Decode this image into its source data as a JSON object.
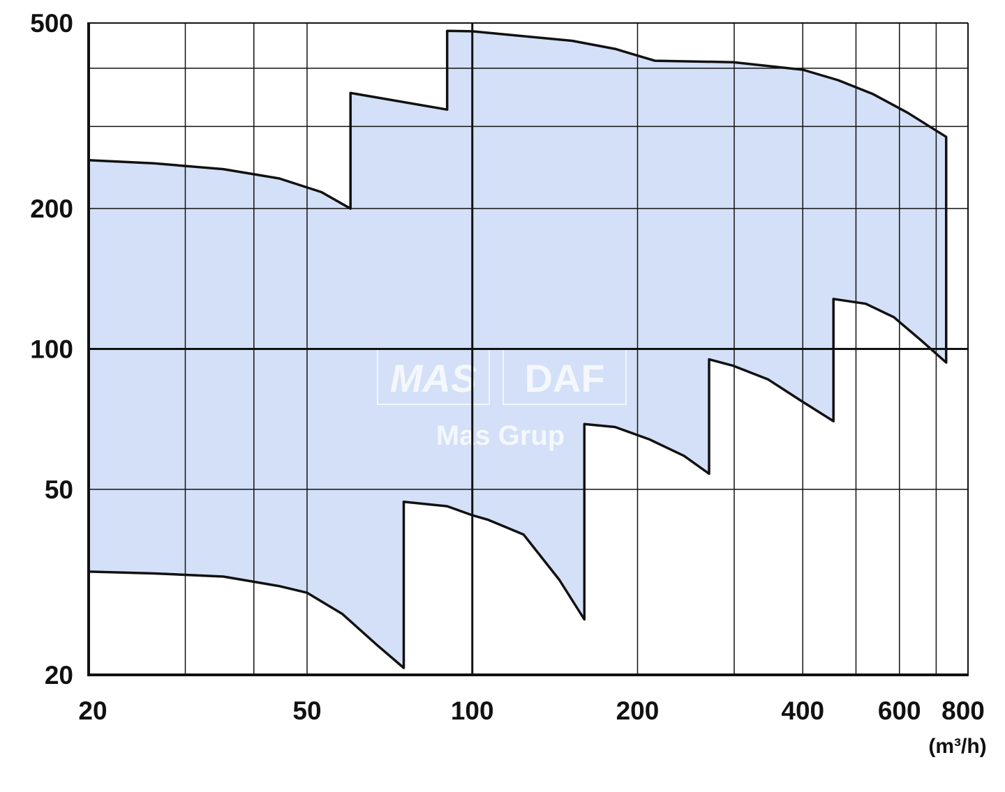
{
  "chart_data": {
    "type": "range-area",
    "x_unit": "(m³/h)",
    "watermark": [
      "MAS",
      "DAF",
      "Mas Grup"
    ],
    "xlim": [
      20,
      800
    ],
    "ylim": [
      20,
      500
    ],
    "log_x": true,
    "log_y": true,
    "xticks": [
      20,
      50,
      100,
      200,
      400,
      600,
      800
    ],
    "yticks": [
      20,
      50,
      100,
      200,
      500
    ],
    "xgrid": [
      30,
      40,
      50,
      100,
      200,
      300,
      400,
      500,
      600,
      700
    ],
    "ygrid": [
      50,
      100,
      200,
      300,
      400
    ],
    "color": "#d3e0f7",
    "line_color": "#111111",
    "x": [
      20,
      26.3,
      35.2,
      44.5,
      53.1,
      60,
      60,
      90,
      90,
      100,
      152,
      182,
      215,
      299,
      400,
      464,
      537,
      621,
      730,
      730,
      659,
      586,
      521,
      455,
      455,
      400,
      346,
      299,
      270,
      270,
      243,
      210,
      182,
      160,
      160,
      144,
      124,
      107,
      100,
      90,
      75,
      75,
      67,
      58,
      50,
      44.5,
      35.2,
      26.3,
      20
    ],
    "values": [
      254,
      250,
      243,
      232,
      217,
      200,
      354,
      326,
      481,
      480,
      458,
      440,
      415,
      412,
      397,
      377,
      352,
      321,
      285,
      93.5,
      104,
      117,
      125,
      128,
      70,
      77,
      86,
      92,
      95,
      54,
      59,
      64,
      68,
      69,
      26.3,
      32,
      40,
      43,
      44,
      46,
      47,
      20.7,
      23.2,
      27,
      30,
      31,
      32.5,
      33,
      33.3
    ]
  }
}
